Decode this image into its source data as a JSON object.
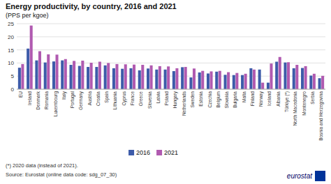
{
  "chart_data": {
    "type": "bar",
    "title": "Energy productivity, by country, 2016 and 2021",
    "subtitle": "(PPS per kgoe)",
    "categories": [
      "EU",
      "Ireland",
      "Denmark",
      "Romania",
      "Luxembourg",
      "Italy",
      "Portugal",
      "Germany",
      "Austria",
      "Croatia",
      "Spain",
      "Lithuania",
      "Cyprus",
      "France",
      "Greece",
      "Slovenia",
      "Latvia",
      "Poland",
      "Hungary",
      "Netherlands",
      "Sweden",
      "Estonia",
      "Czechia",
      "Belgium",
      "Slovakia",
      "Bulgaria",
      "Malta",
      "Finland",
      "Norway",
      "Iceland",
      "Albania",
      "Türkiye (*)",
      "North Macedonia",
      "Montenegro",
      "Serbia",
      "Bosnia and Herzegovina"
    ],
    "series": [
      {
        "name": "2016",
        "color": "#3d5ba9",
        "values": [
          8.2,
          15.5,
          11.0,
          10.2,
          10.6,
          11.0,
          9.3,
          8.9,
          8.5,
          8.5,
          9.1,
          8.0,
          7.8,
          8.0,
          7.2,
          7.9,
          7.5,
          7.5,
          6.9,
          8.4,
          4.5,
          6.4,
          6.0,
          6.7,
          5.5,
          5.4,
          5.4,
          8.0,
          7.5,
          2.5,
          10.5,
          10.2,
          8.0,
          8.1,
          5.2,
          4.2
        ]
      },
      {
        "name": "2021",
        "color": "#b05ab0",
        "values": [
          9.6,
          24.3,
          14.5,
          13.3,
          13.2,
          11.5,
          10.8,
          10.9,
          10.1,
          10.5,
          10.0,
          9.6,
          9.5,
          9.4,
          9.3,
          9.1,
          8.8,
          8.7,
          8.0,
          8.5,
          7.9,
          7.0,
          6.8,
          7.0,
          6.5,
          6.2,
          5.9,
          7.5,
          2.5,
          9.8,
          12.3,
          10.3,
          9.3,
          8.8,
          5.9,
          5.1
        ]
      }
    ],
    "ylim": [
      0,
      25
    ],
    "yticks": [
      0,
      5,
      10,
      15,
      20,
      25
    ],
    "grid": true,
    "legend": "bottom",
    "annotations": [
      "(*) 2020 data (instead of 2021).",
      "Source: Eurostat (online data code: sdg_07_30)",
      "eurostat"
    ]
  }
}
